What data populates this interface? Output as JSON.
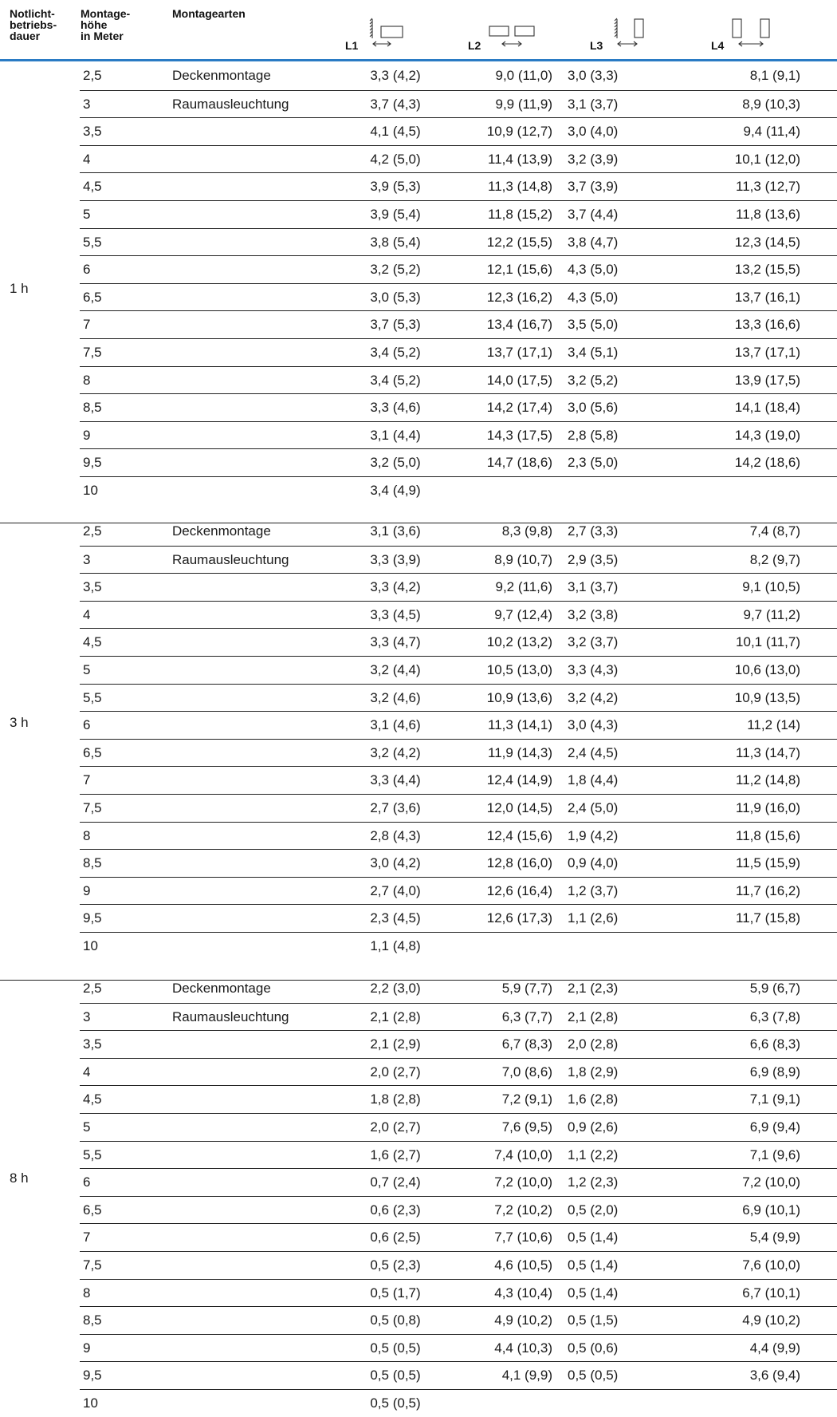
{
  "header": {
    "col_duration": [
      "Notlicht-",
      "betriebs-",
      "dauer"
    ],
    "col_height": [
      "Montage-",
      "höhe",
      "in Meter"
    ],
    "col_mounting": "Montagearten",
    "L1": "L1",
    "L2": "L2",
    "L3": "L3",
    "L4": "L4"
  },
  "icons": {
    "L1": "wall-and-luminaire-icon",
    "L2": "two-luminaires-icon",
    "L3": "wall-and-upright-luminaire-icon",
    "L4": "two-upright-luminaires-icon"
  },
  "colors": {
    "accent_rule": "#2a7bc4"
  },
  "groups": [
    {
      "label": "1 h",
      "rows": [
        {
          "h": "2,5",
          "m": "Deckenmontage",
          "l1": "3,3 (4,2)",
          "l2": "9,0 (11,0)",
          "l3": "3,0 (3,3)",
          "l4": "8,1 (9,1)"
        },
        {
          "h": "3",
          "m": "Raumausleuchtung",
          "l1": "3,7 (4,3)",
          "l2": "9,9 (11,9)",
          "l3": "3,1 (3,7)",
          "l4": "8,9 (10,3)"
        },
        {
          "h": "3,5",
          "m": "",
          "l1": "4,1 (4,5)",
          "l2": "10,9 (12,7)",
          "l3": "3,0 (4,0)",
          "l4": "9,4 (11,4)"
        },
        {
          "h": "4",
          "m": "",
          "l1": "4,2 (5,0)",
          "l2": "11,4 (13,9)",
          "l3": "3,2 (3,9)",
          "l4": "10,1 (12,0)"
        },
        {
          "h": "4,5",
          "m": "",
          "l1": "3,9 (5,3)",
          "l2": "11,3 (14,8)",
          "l3": "3,7 (3,9)",
          "l4": "11,3 (12,7)"
        },
        {
          "h": "5",
          "m": "",
          "l1": "3,9 (5,4)",
          "l2": "11,8 (15,2)",
          "l3": "3,7 (4,4)",
          "l4": "11,8 (13,6)"
        },
        {
          "h": "5,5",
          "m": "",
          "l1": "3,8 (5,4)",
          "l2": "12,2 (15,5)",
          "l3": "3,8 (4,7)",
          "l4": "12,3 (14,5)"
        },
        {
          "h": "6",
          "m": "",
          "l1": "3,2 (5,2)",
          "l2": "12,1 (15,6)",
          "l3": "4,3 (5,0)",
          "l4": "13,2 (15,5)"
        },
        {
          "h": "6,5",
          "m": "",
          "l1": "3,0 (5,3)",
          "l2": "12,3 (16,2)",
          "l3": "4,3 (5,0)",
          "l4": "13,7 (16,1)"
        },
        {
          "h": "7",
          "m": "",
          "l1": "3,7 (5,3)",
          "l2": "13,4 (16,7)",
          "l3": "3,5 (5,0)",
          "l4": "13,3 (16,6)"
        },
        {
          "h": "7,5",
          "m": "",
          "l1": "3,4 (5,2)",
          "l2": "13,7 (17,1)",
          "l3": "3,4 (5,1)",
          "l4": "13,7 (17,1)"
        },
        {
          "h": "8",
          "m": "",
          "l1": "3,4 (5,2)",
          "l2": "14,0 (17,5)",
          "l3": "3,2 (5,2)",
          "l4": "13,9 (17,5)"
        },
        {
          "h": "8,5",
          "m": "",
          "l1": "3,3 (4,6)",
          "l2": "14,2 (17,4)",
          "l3": "3,0 (5,6)",
          "l4": "14,1 (18,4)"
        },
        {
          "h": "9",
          "m": "",
          "l1": "3,1 (4,4)",
          "l2": "14,3 (17,5)",
          "l3": "2,8 (5,8)",
          "l4": "14,3 (19,0)"
        },
        {
          "h": "9,5",
          "m": "",
          "l1": "3,2 (5,0)",
          "l2": "14,7 (18,6)",
          "l3": "2,3 (5,0)",
          "l4": "14,2 (18,6)"
        },
        {
          "h": "10",
          "m": "",
          "l1": "3,4 (4,9)",
          "l2": "",
          "l3": "",
          "l4": ""
        }
      ]
    },
    {
      "label": "3 h",
      "rows": [
        {
          "h": "2,5",
          "m": "Deckenmontage",
          "l1": "3,1 (3,6)",
          "l2": "8,3 (9,8)",
          "l3": "2,7 (3,3)",
          "l4": "7,4 (8,7)"
        },
        {
          "h": "3",
          "m": "Raumausleuchtung",
          "l1": "3,3 (3,9)",
          "l2": "8,9 (10,7)",
          "l3": "2,9 (3,5)",
          "l4": "8,2 (9,7)"
        },
        {
          "h": "3,5",
          "m": "",
          "l1": "3,3 (4,2)",
          "l2": "9,2 (11,6)",
          "l3": "3,1 (3,7)",
          "l4": "9,1 (10,5)"
        },
        {
          "h": "4",
          "m": "",
          "l1": "3,3 (4,5)",
          "l2": "9,7 (12,4)",
          "l3": "3,2 (3,8)",
          "l4": "9,7 (11,2)"
        },
        {
          "h": "4,5",
          "m": "",
          "l1": "3,3 (4,7)",
          "l2": "10,2 (13,2)",
          "l3": "3,2 (3,7)",
          "l4": "10,1 (11,7)"
        },
        {
          "h": "5",
          "m": "",
          "l1": "3,2 (4,4)",
          "l2": "10,5 (13,0)",
          "l3": "3,3 (4,3)",
          "l4": "10,6 (13,0)"
        },
        {
          "h": "5,5",
          "m": "",
          "l1": "3,2 (4,6)",
          "l2": "10,9 (13,6)",
          "l3": "3,2 (4,2)",
          "l4": "10,9 (13,5)"
        },
        {
          "h": "6",
          "m": "",
          "l1": "3,1 (4,6)",
          "l2": "11,3 (14,1)",
          "l3": "3,0 (4,3)",
          "l4": "11,2 (14)"
        },
        {
          "h": "6,5",
          "m": "",
          "l1": "3,2 (4,2)",
          "l2": "11,9 (14,3)",
          "l3": "2,4 (4,5)",
          "l4": "11,3 (14,7)"
        },
        {
          "h": "7",
          "m": "",
          "l1": "3,3 (4,4)",
          "l2": "12,4 (14,9)",
          "l3": "1,8 (4,4)",
          "l4": "11,2 (14,8)"
        },
        {
          "h": "7,5",
          "m": "",
          "l1": "2,7 (3,6)",
          "l2": "12,0 (14,5)",
          "l3": "2,4 (5,0)",
          "l4": "11,9 (16,0)"
        },
        {
          "h": "8",
          "m": "",
          "l1": "2,8 (4,3)",
          "l2": "12,4 (15,6)",
          "l3": "1,9 (4,2)",
          "l4": "11,8 (15,6)"
        },
        {
          "h": "8,5",
          "m": "",
          "l1": "3,0 (4,2)",
          "l2": "12,8 (16,0)",
          "l3": "0,9 (4,0)",
          "l4": "11,5 (15,9)"
        },
        {
          "h": "9",
          "m": "",
          "l1": "2,7 (4,0)",
          "l2": "12,6 (16,4)",
          "l3": "1,2 (3,7)",
          "l4": "11,7 (16,2)"
        },
        {
          "h": "9,5",
          "m": "",
          "l1": "2,3 (4,5)",
          "l2": "12,6 (17,3)",
          "l3": "1,1 (2,6)",
          "l4": "11,7 (15,8)"
        },
        {
          "h": "10",
          "m": "",
          "l1": "1,1 (4,8)",
          "l2": "",
          "l3": "",
          "l4": ""
        }
      ]
    },
    {
      "label": "8 h",
      "rows": [
        {
          "h": "2,5",
          "m": "Deckenmontage",
          "l1": "2,2 (3,0)",
          "l2": "5,9 (7,7)",
          "l3": "2,1 (2,3)",
          "l4": "5,9 (6,7)"
        },
        {
          "h": "3",
          "m": "Raumausleuchtung",
          "l1": "2,1 (2,8)",
          "l2": "6,3 (7,7)",
          "l3": "2,1 (2,8)",
          "l4": "6,3 (7,8)"
        },
        {
          "h": "3,5",
          "m": "",
          "l1": "2,1 (2,9)",
          "l2": "6,7 (8,3)",
          "l3": "2,0 (2,8)",
          "l4": "6,6 (8,3)"
        },
        {
          "h": "4",
          "m": "",
          "l1": "2,0 (2,7)",
          "l2": "7,0 (8,6)",
          "l3": "1,8 (2,9)",
          "l4": "6,9 (8,9)"
        },
        {
          "h": "4,5",
          "m": "",
          "l1": "1,8 (2,8)",
          "l2": "7,2 (9,1)",
          "l3": "1,6 (2,8)",
          "l4": "7,1 (9,1)"
        },
        {
          "h": "5",
          "m": "",
          "l1": "2,0 (2,7)",
          "l2": "7,6 (9,5)",
          "l3": "0,9 (2,6)",
          "l4": "6,9 (9,4)"
        },
        {
          "h": "5,5",
          "m": "",
          "l1": "1,6 (2,7)",
          "l2": "7,4 (10,0)",
          "l3": "1,1 (2,2)",
          "l4": "7,1 (9,6)"
        },
        {
          "h": "6",
          "m": "",
          "l1": "0,7 (2,4)",
          "l2": "7,2 (10,0)",
          "l3": "1,2 (2,3)",
          "l4": "7,2 (10,0)"
        },
        {
          "h": "6,5",
          "m": "",
          "l1": "0,6 (2,3)",
          "l2": "7,2 (10,2)",
          "l3": "0,5 (2,0)",
          "l4": "6,9 (10,1)"
        },
        {
          "h": "7",
          "m": "",
          "l1": "0,6 (2,5)",
          "l2": "7,7 (10,6)",
          "l3": "0,5 (1,4)",
          "l4": "5,4 (9,9)"
        },
        {
          "h": "7,5",
          "m": "",
          "l1": "0,5 (2,3)",
          "l2": "4,6 (10,5)",
          "l3": "0,5 (1,4)",
          "l4": "7,6 (10,0)"
        },
        {
          "h": "8",
          "m": "",
          "l1": "0,5 (1,7)",
          "l2": "4,3 (10,4)",
          "l3": "0,5 (1,4)",
          "l4": "6,7 (10,1)"
        },
        {
          "h": "8,5",
          "m": "",
          "l1": "0,5 (0,8)",
          "l2": "4,9 (10,2)",
          "l3": "0,5 (1,5)",
          "l4": "4,9 (10,2)"
        },
        {
          "h": "9",
          "m": "",
          "l1": "0,5 (0,5)",
          "l2": "4,4 (10,3)",
          "l3": "0,5 (0,6)",
          "l4": "4,4 (9,9)"
        },
        {
          "h": "9,5",
          "m": "",
          "l1": "0,5 (0,5)",
          "l2": "4,1 (9,9)",
          "l3": "0,5 (0,5)",
          "l4": "3,6 (9,4)"
        },
        {
          "h": "10",
          "m": "",
          "l1": "0,5 (0,5)",
          "l2": "",
          "l3": "",
          "l4": ""
        }
      ]
    }
  ]
}
